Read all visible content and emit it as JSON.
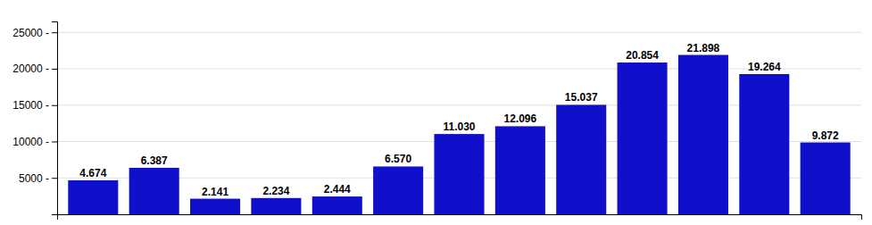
{
  "chart_data": {
    "type": "bar",
    "categories": [
      null,
      null,
      null,
      null,
      null,
      null,
      null,
      null,
      null,
      null,
      null,
      null,
      null
    ],
    "values": [
      4674,
      6387,
      2141,
      2234,
      2444,
      6570,
      11030,
      12096,
      15037,
      20854,
      21898,
      19264,
      9872
    ],
    "value_labels": [
      "4.674",
      "6.387",
      "2.141",
      "2.234",
      "2.444",
      "6.570",
      "11.030",
      "12.096",
      "15.037",
      "20.854",
      "21.898",
      "19.264",
      "9.872"
    ],
    "data_labels": true,
    "color": "#1010cc",
    "ylim": [
      0,
      26500
    ],
    "yticks": [
      {
        "value": 5000,
        "label": "5000 -"
      },
      {
        "value": 10000,
        "label": "10000 -"
      },
      {
        "value": 15000,
        "label": "15000 -"
      },
      {
        "value": 20000,
        "label": "20000 -"
      },
      {
        "value": 25000,
        "label": "25000 -"
      }
    ],
    "grid": true,
    "tick_labels": "y"
  }
}
